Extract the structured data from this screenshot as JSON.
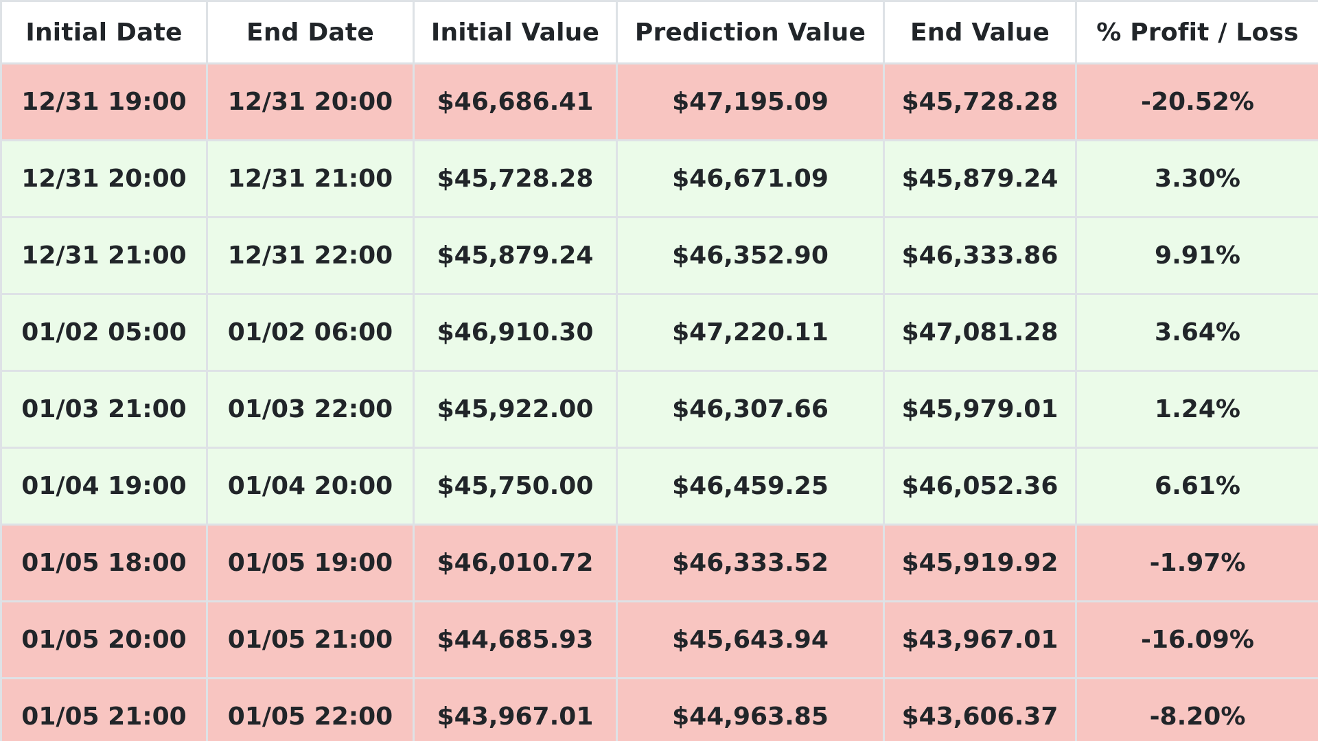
{
  "table": {
    "headers": [
      "Initial Date",
      "End Date",
      "Initial Value",
      "Prediction Value",
      "End Value",
      "% Profit / Loss"
    ],
    "row_colors": {
      "loss": "#f8c5c1",
      "profit": "#ebfbe9",
      "border": "#dee2e6",
      "text": "#212529"
    },
    "rows": [
      {
        "status": "loss",
        "cells": [
          "12/31 19:00",
          "12/31 20:00",
          "$46,686.41",
          "$47,195.09",
          "$45,728.28",
          "-20.52%"
        ]
      },
      {
        "status": "profit",
        "cells": [
          "12/31 20:00",
          "12/31 21:00",
          "$45,728.28",
          "$46,671.09",
          "$45,879.24",
          "3.30%"
        ]
      },
      {
        "status": "profit",
        "cells": [
          "12/31 21:00",
          "12/31 22:00",
          "$45,879.24",
          "$46,352.90",
          "$46,333.86",
          "9.91%"
        ]
      },
      {
        "status": "profit",
        "cells": [
          "01/02 05:00",
          "01/02 06:00",
          "$46,910.30",
          "$47,220.11",
          "$47,081.28",
          "3.64%"
        ]
      },
      {
        "status": "profit",
        "cells": [
          "01/03 21:00",
          "01/03 22:00",
          "$45,922.00",
          "$46,307.66",
          "$45,979.01",
          "1.24%"
        ]
      },
      {
        "status": "profit",
        "cells": [
          "01/04 19:00",
          "01/04 20:00",
          "$45,750.00",
          "$46,459.25",
          "$46,052.36",
          "6.61%"
        ]
      },
      {
        "status": "loss",
        "cells": [
          "01/05 18:00",
          "01/05 19:00",
          "$46,010.72",
          "$46,333.52",
          "$45,919.92",
          "-1.97%"
        ]
      },
      {
        "status": "loss",
        "cells": [
          "01/05 20:00",
          "01/05 21:00",
          "$44,685.93",
          "$45,643.94",
          "$43,967.01",
          "-16.09%"
        ]
      },
      {
        "status": "loss",
        "cells": [
          "01/05 21:00",
          "01/05 22:00",
          "$43,967.01",
          "$44,963.85",
          "$43,606.37",
          "-8.20%"
        ]
      }
    ]
  }
}
